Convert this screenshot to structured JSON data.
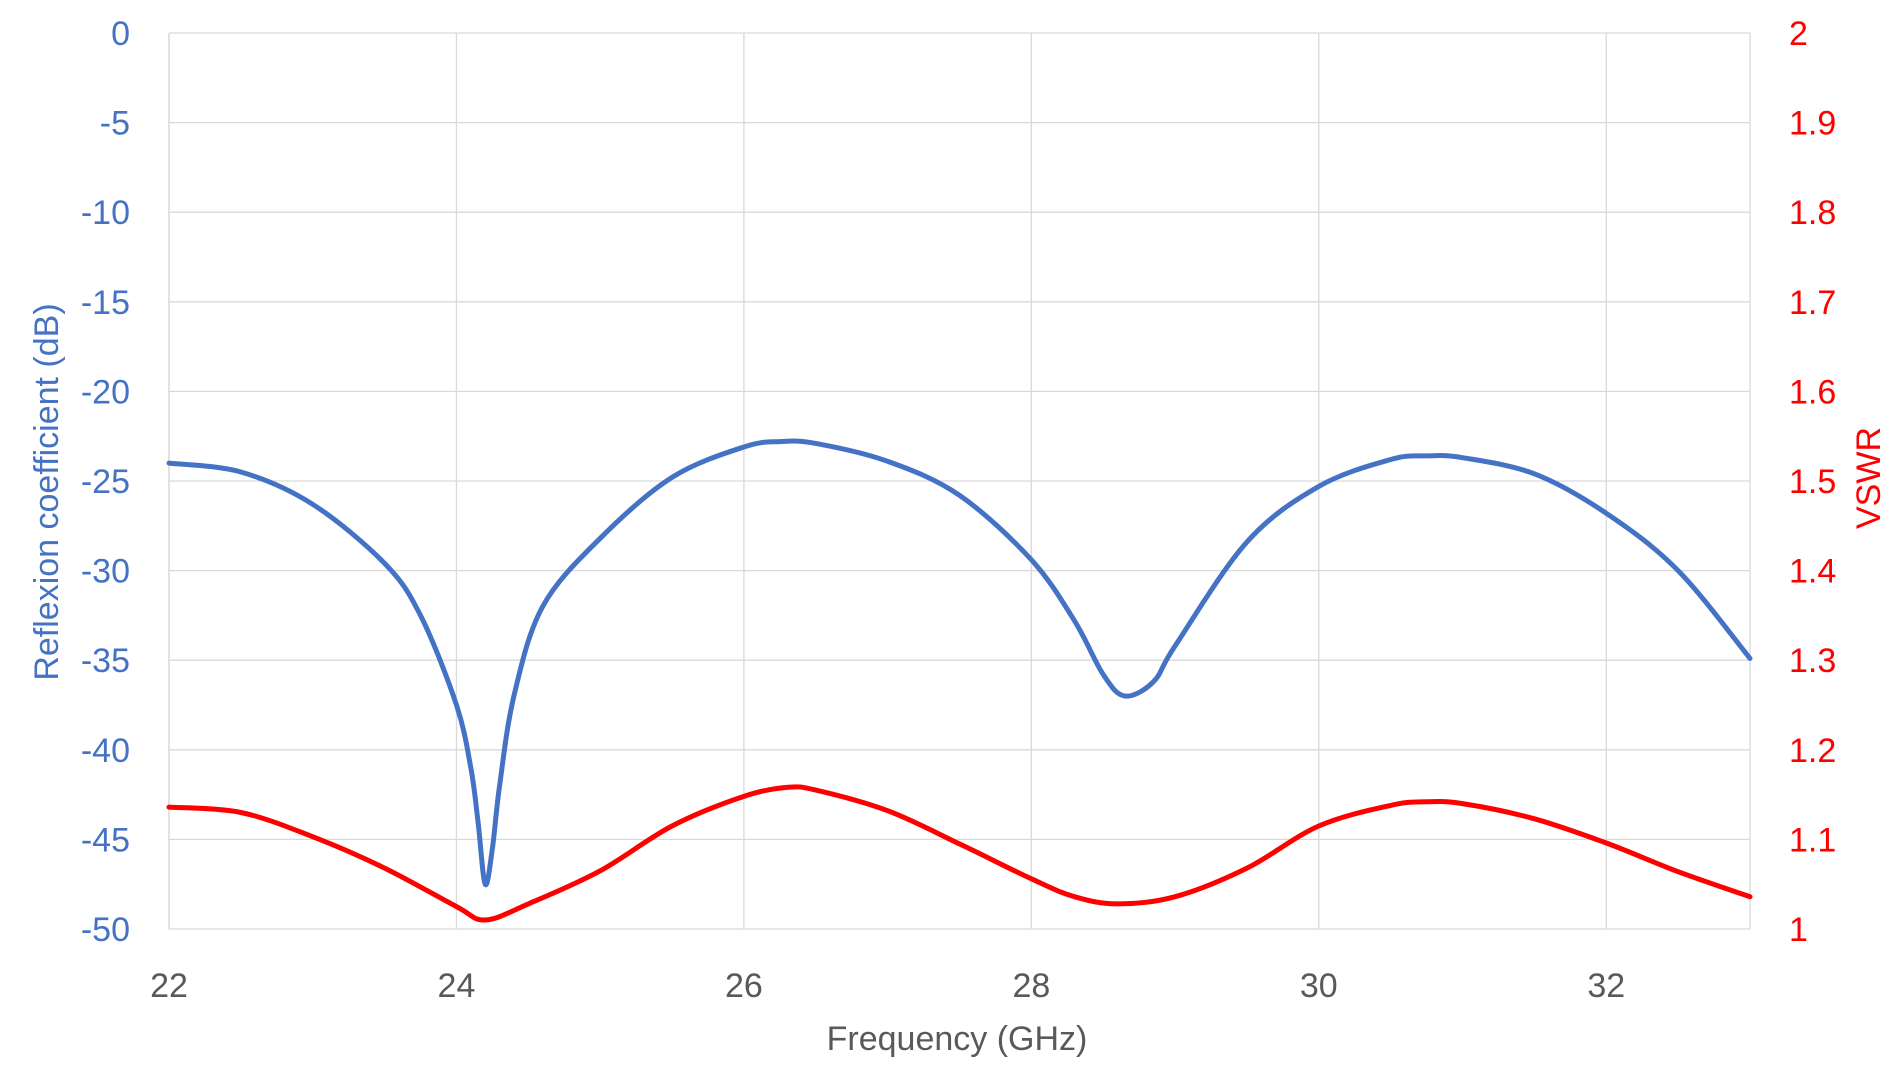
{
  "chart_data": {
    "type": "line",
    "title": "",
    "xlabel": "Frequency (GHz)",
    "ylabel": "Reflexion coefficient (dB)",
    "y2label": "VSWR",
    "xlim": [
      22,
      33
    ],
    "ylim": [
      -50,
      0
    ],
    "y2lim": [
      1,
      2
    ],
    "x_ticks": [
      "22",
      "24",
      "26",
      "28",
      "30",
      "32"
    ],
    "y_ticks": [
      "0",
      "-5",
      "-10",
      "-15",
      "-20",
      "-25",
      "-30",
      "-35",
      "-40",
      "-45",
      "-50"
    ],
    "y2_ticks": [
      "2",
      "1.9",
      "1.8",
      "1.7",
      "1.6",
      "1.5",
      "1.4",
      "1.3",
      "1.2",
      "1.1",
      "1"
    ],
    "grid": true,
    "legend": "none",
    "series": [
      {
        "axis": "left",
        "color": "#4472C4",
        "points": [
          [
            22.0,
            -24.0
          ],
          [
            22.5,
            -24.5
          ],
          [
            23.0,
            -26.3
          ],
          [
            23.5,
            -29.6
          ],
          [
            23.75,
            -32.5
          ],
          [
            24.0,
            -37.5
          ],
          [
            24.1,
            -41.0
          ],
          [
            24.15,
            -44.0
          ],
          [
            24.2,
            -47.5
          ],
          [
            24.25,
            -45.5
          ],
          [
            24.3,
            -42.0
          ],
          [
            24.4,
            -37.0
          ],
          [
            24.6,
            -32.0
          ],
          [
            25.0,
            -28.2
          ],
          [
            25.5,
            -24.8
          ],
          [
            26.0,
            -23.1
          ],
          [
            26.25,
            -22.8
          ],
          [
            26.5,
            -22.9
          ],
          [
            27.0,
            -23.9
          ],
          [
            27.5,
            -25.8
          ],
          [
            28.0,
            -29.4
          ],
          [
            28.3,
            -32.8
          ],
          [
            28.5,
            -35.8
          ],
          [
            28.65,
            -37.0
          ],
          [
            28.85,
            -36.2
          ],
          [
            29.0,
            -34.2
          ],
          [
            29.5,
            -28.4
          ],
          [
            30.0,
            -25.3
          ],
          [
            30.5,
            -23.8
          ],
          [
            30.75,
            -23.6
          ],
          [
            31.0,
            -23.7
          ],
          [
            31.5,
            -24.6
          ],
          [
            32.0,
            -26.8
          ],
          [
            32.5,
            -30.0
          ],
          [
            33.0,
            -34.9
          ]
        ]
      },
      {
        "axis": "right",
        "color": "#FF0000",
        "points": [
          [
            22.0,
            1.136
          ],
          [
            22.5,
            1.13
          ],
          [
            23.0,
            1.103
          ],
          [
            23.5,
            1.068
          ],
          [
            24.0,
            1.025
          ],
          [
            24.2,
            1.01
          ],
          [
            24.5,
            1.028
          ],
          [
            25.0,
            1.065
          ],
          [
            25.5,
            1.115
          ],
          [
            26.0,
            1.148
          ],
          [
            26.3,
            1.158
          ],
          [
            26.5,
            1.155
          ],
          [
            27.0,
            1.132
          ],
          [
            27.5,
            1.095
          ],
          [
            28.0,
            1.056
          ],
          [
            28.3,
            1.036
          ],
          [
            28.6,
            1.028
          ],
          [
            29.0,
            1.036
          ],
          [
            29.5,
            1.068
          ],
          [
            30.0,
            1.115
          ],
          [
            30.5,
            1.138
          ],
          [
            30.75,
            1.142
          ],
          [
            31.0,
            1.14
          ],
          [
            31.5,
            1.123
          ],
          [
            32.0,
            1.096
          ],
          [
            32.5,
            1.064
          ],
          [
            33.0,
            1.036
          ]
        ]
      }
    ]
  }
}
